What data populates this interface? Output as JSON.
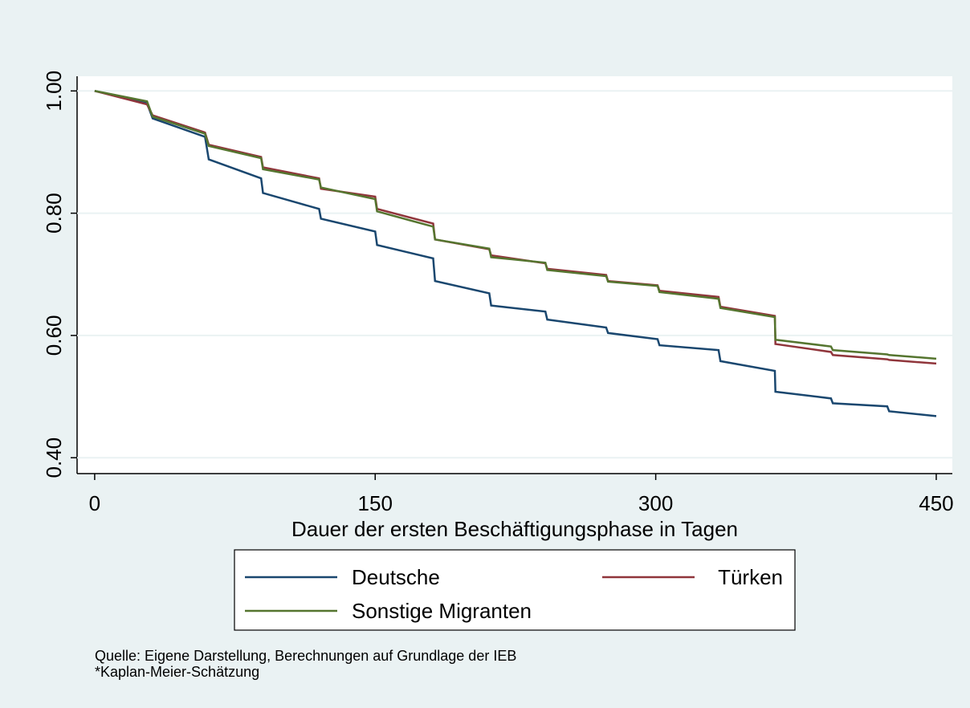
{
  "chart_data": {
    "type": "line",
    "x_label": "Dauer der ersten Beschäftigungsphase in Tagen",
    "x": [
      0,
      28,
      31,
      59,
      61,
      89,
      90,
      120,
      121,
      150,
      151,
      181,
      182,
      211,
      212,
      241,
      242,
      273.5,
      274.5,
      301,
      302,
      333.6,
      334.6,
      363.7,
      364,
      393.7,
      394.7,
      423.8,
      424.8,
      450
    ],
    "series": [
      {
        "name": "Deutsche",
        "color": "#1a476f",
        "values": [
          1.0,
          0.98,
          0.955,
          0.925,
          0.888,
          0.857,
          0.833,
          0.807,
          0.791,
          0.77,
          0.748,
          0.726,
          0.689,
          0.669,
          0.649,
          0.639,
          0.626,
          0.613,
          0.604,
          0.594,
          0.584,
          0.576,
          0.558,
          0.542,
          0.508,
          0.497,
          0.489,
          0.484,
          0.476,
          0.468
        ]
      },
      {
        "name": "Türken",
        "color": "#90353b",
        "values": [
          1.0,
          0.978,
          0.96,
          0.932,
          0.912,
          0.892,
          0.875,
          0.857,
          0.84,
          0.827,
          0.807,
          0.783,
          0.757,
          0.741,
          0.731,
          0.718,
          0.709,
          0.699,
          0.689,
          0.682,
          0.673,
          0.663,
          0.647,
          0.632,
          0.586,
          0.573,
          0.568,
          0.561,
          0.56,
          0.554
        ]
      },
      {
        "name": "Sonstige Migranten",
        "color": "#55752f",
        "values": [
          1.0,
          0.983,
          0.958,
          0.93,
          0.91,
          0.89,
          0.872,
          0.855,
          0.842,
          0.823,
          0.803,
          0.778,
          0.757,
          0.742,
          0.728,
          0.719,
          0.707,
          0.697,
          0.688,
          0.681,
          0.671,
          0.66,
          0.645,
          0.63,
          0.593,
          0.582,
          0.576,
          0.569,
          0.568,
          0.562
        ]
      }
    ],
    "xlim": [
      -9.4,
      458.6
    ],
    "xticks": [
      0,
      150,
      300,
      450
    ],
    "ylim": [
      0.374,
      1.024
    ],
    "yticks": [
      {
        "value": 0.4,
        "label": "0.40"
      },
      {
        "value": 0.6,
        "label": "0.60"
      },
      {
        "value": 0.8,
        "label": "0.80"
      },
      {
        "value": 1,
        "label": "1.00"
      }
    ],
    "grid": true,
    "notes": [
      "Quelle: Eigene Darstellung, Berechnungen auf Grundlage der IEB",
      "*Kaplan-Meier-Schätzung"
    ]
  }
}
